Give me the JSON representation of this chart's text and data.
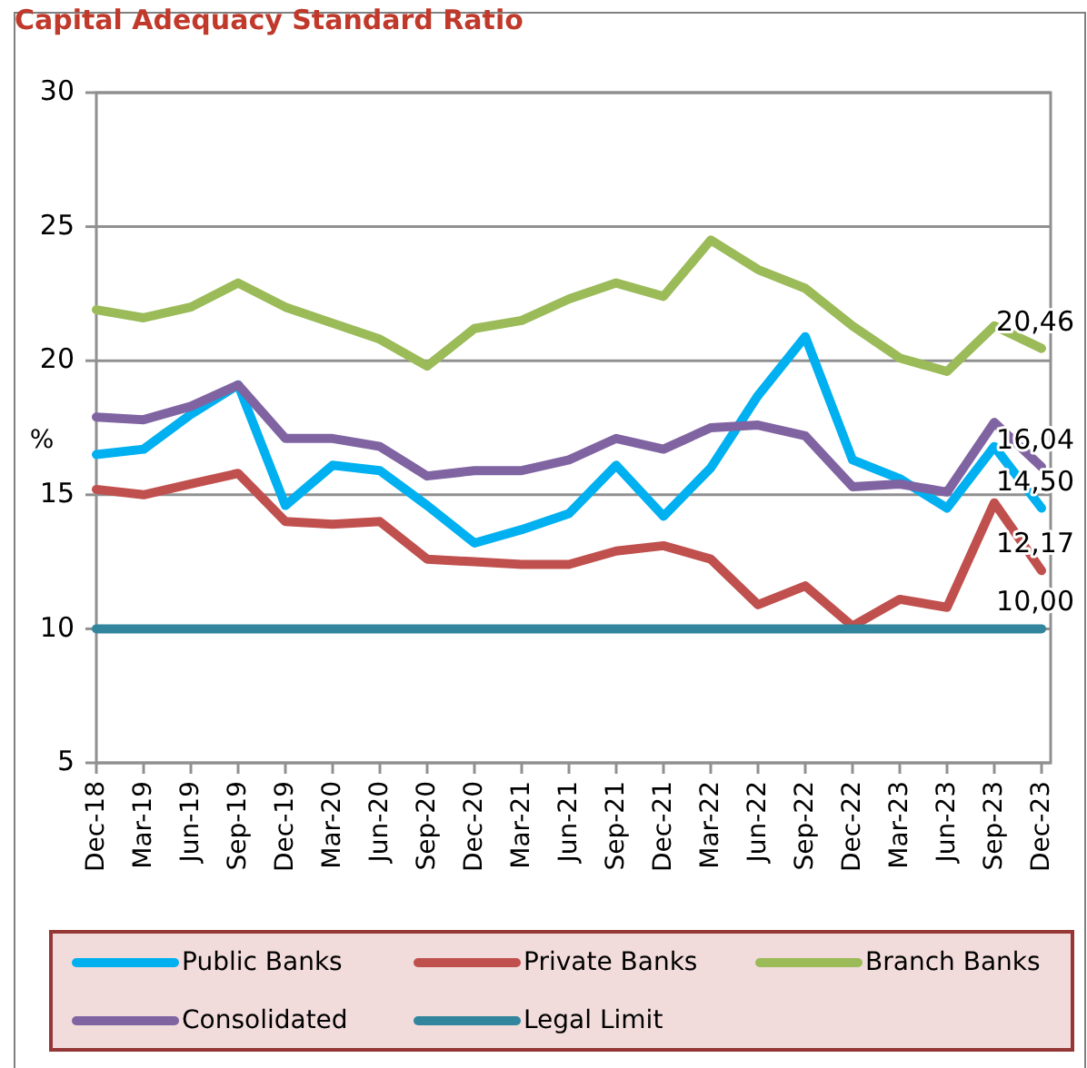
{
  "chart_data": {
    "type": "line",
    "title": "Capital Adequacy Standard Ratio",
    "ylabel": "%",
    "categories": [
      "Dec-18",
      "Mar-19",
      "Jun-19",
      "Sep-19",
      "Dec-19",
      "Mar-20",
      "Jun-20",
      "Sep-20",
      "Dec-20",
      "Mar-21",
      "Jun-21",
      "Sep-21",
      "Dec-21",
      "Mar-22",
      "Jun-22",
      "Sep-22",
      "Dec-22",
      "Mar-23",
      "Jun-23",
      "Sep-23",
      "Dec-23"
    ],
    "series": [
      {
        "name": "Public Banks",
        "color": "#00b0f0",
        "values": [
          16.5,
          16.7,
          18.0,
          19.1,
          14.6,
          16.1,
          15.9,
          14.6,
          13.2,
          13.7,
          14.3,
          16.1,
          14.2,
          16.0,
          18.7,
          20.9,
          16.3,
          15.6,
          14.5,
          16.8,
          14.5
        ],
        "value_labels": [
          null,
          null,
          null,
          null,
          null,
          null,
          null,
          null,
          null,
          null,
          null,
          null,
          null,
          null,
          null,
          null,
          null,
          null,
          null,
          null,
          "14,50"
        ]
      },
      {
        "name": "Private Banks",
        "color": "#c0504d",
        "values": [
          15.2,
          15.0,
          15.4,
          15.8,
          14.0,
          13.9,
          14.0,
          12.6,
          12.5,
          12.4,
          12.4,
          12.9,
          13.1,
          12.6,
          10.9,
          11.6,
          10.1,
          11.1,
          10.8,
          14.7,
          12.17
        ],
        "value_labels": [
          null,
          null,
          null,
          null,
          null,
          null,
          null,
          null,
          null,
          null,
          null,
          null,
          null,
          null,
          null,
          null,
          null,
          null,
          null,
          null,
          "12,17"
        ]
      },
      {
        "name": "Branch Banks",
        "color": "#9bbb59",
        "values": [
          21.9,
          21.6,
          22.0,
          22.9,
          22.0,
          21.4,
          20.8,
          19.8,
          21.2,
          21.5,
          22.3,
          22.9,
          22.4,
          24.5,
          23.4,
          22.7,
          21.3,
          20.1,
          19.6,
          21.3,
          20.46
        ],
        "value_labels": [
          null,
          null,
          null,
          null,
          null,
          null,
          null,
          null,
          null,
          null,
          null,
          null,
          null,
          null,
          null,
          null,
          null,
          null,
          null,
          null,
          "20,46"
        ]
      },
      {
        "name": "Consolidated",
        "color": "#8064a2",
        "values": [
          17.9,
          17.8,
          18.3,
          19.1,
          17.1,
          17.1,
          16.8,
          15.7,
          15.9,
          15.9,
          16.3,
          17.1,
          16.7,
          17.5,
          17.6,
          17.2,
          15.3,
          15.4,
          15.1,
          17.7,
          16.04
        ],
        "value_labels": [
          null,
          null,
          null,
          null,
          null,
          null,
          null,
          null,
          null,
          null,
          null,
          null,
          null,
          null,
          null,
          null,
          null,
          null,
          null,
          null,
          "16,04"
        ]
      },
      {
        "name": "Legal Limit",
        "color": "#31859c",
        "values": [
          10,
          10,
          10,
          10,
          10,
          10,
          10,
          10,
          10,
          10,
          10,
          10,
          10,
          10,
          10,
          10,
          10,
          10,
          10,
          10,
          10
        ],
        "value_labels": [
          null,
          null,
          null,
          null,
          null,
          null,
          null,
          null,
          null,
          null,
          null,
          null,
          null,
          null,
          null,
          null,
          null,
          null,
          null,
          null,
          "10,00"
        ]
      }
    ],
    "ylim": [
      5,
      30
    ],
    "yticks": [
      5,
      10,
      15,
      20,
      25,
      30
    ],
    "grid": "y",
    "legend": "bottom",
    "marker": "none",
    "line_style": "solid"
  }
}
